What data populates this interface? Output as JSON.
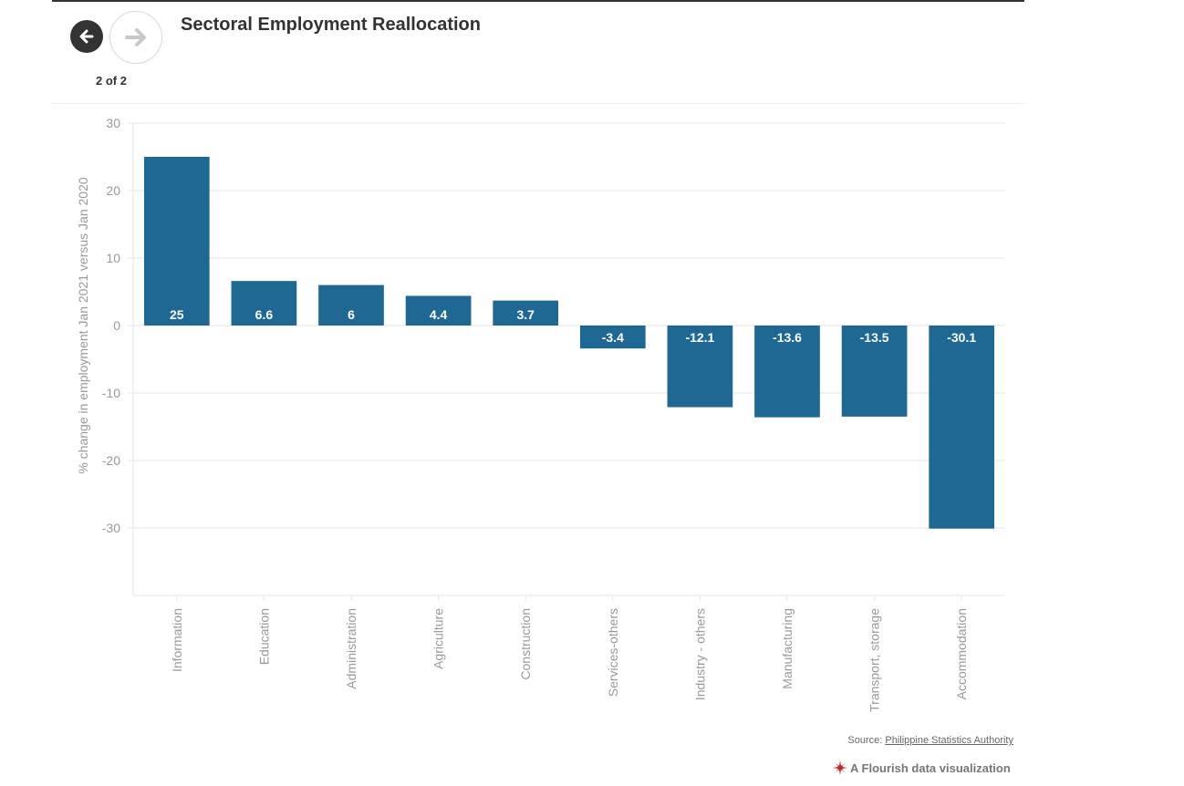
{
  "header": {
    "title": "Sectoral Employment Reallocation",
    "counter": "2 of 2"
  },
  "footer": {
    "source_prefix": "Source: ",
    "source_link": "Philippine Statistics Authority",
    "credit": "A Flourish data visualization"
  },
  "icons": {
    "back": "arrow-left-icon",
    "forward": "arrow-right-icon",
    "credit": "flourish-star-icon"
  },
  "colors": {
    "bar": "#1f6893",
    "axis_text": "#999999",
    "grid": "#e6e6e6",
    "title": "#333333",
    "brand": "#c0282d"
  },
  "chart_data": {
    "type": "bar",
    "categories": [
      "Information",
      "Education",
      "Administration",
      "Agriculture",
      "Construction",
      "Services-others",
      "Industry - others",
      "Manufacturing",
      "Transport, storage",
      "Accommodation"
    ],
    "values": [
      25,
      6.6,
      6,
      4.4,
      3.7,
      -3.4,
      -12.1,
      -13.6,
      -13.5,
      -30.1
    ],
    "data_labels": [
      "25",
      "6.6",
      "6",
      "4.4",
      "3.7",
      "-3.4",
      "-12.1",
      "-13.6",
      "-13.5",
      "-30.1"
    ],
    "ylabel": "% change in employment Jan 2021 versus Jan 2020",
    "ylim": [
      -40,
      30
    ],
    "yticks": [
      30,
      20,
      10,
      0,
      -10,
      -20,
      -30
    ],
    "grid": true
  }
}
